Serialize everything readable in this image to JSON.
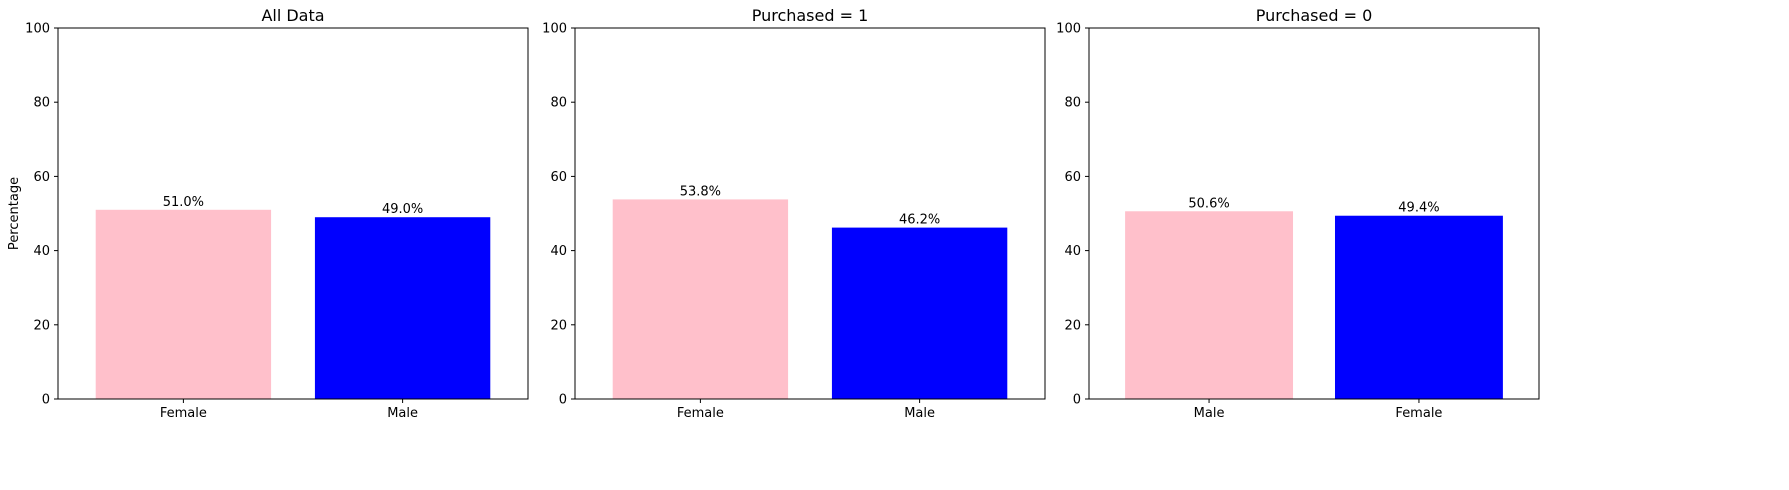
{
  "chart_data": [
    {
      "type": "bar",
      "title": "All Data",
      "ylabel": "Percentage",
      "xlabel": "",
      "ylim": [
        0,
        100
      ],
      "yticks": [
        0,
        20,
        40,
        60,
        80,
        100
      ],
      "categories": [
        "Female",
        "Male"
      ],
      "values": [
        51.0,
        49.0
      ],
      "value_labels": [
        "51.0%",
        "49.0%"
      ],
      "colors": [
        "#ffc0cb",
        "#0000ff"
      ],
      "grid": false
    },
    {
      "type": "bar",
      "title": "Purchased = 1",
      "ylabel": "",
      "xlabel": "",
      "ylim": [
        0,
        100
      ],
      "yticks": [
        0,
        20,
        40,
        60,
        80,
        100
      ],
      "categories": [
        "Female",
        "Male"
      ],
      "values": [
        53.8,
        46.2
      ],
      "value_labels": [
        "53.8%",
        "46.2%"
      ],
      "colors": [
        "#ffc0cb",
        "#0000ff"
      ],
      "grid": false
    },
    {
      "type": "bar",
      "title": "Purchased = 0",
      "ylabel": "",
      "xlabel": "",
      "ylim": [
        0,
        100
      ],
      "yticks": [
        0,
        20,
        40,
        60,
        80,
        100
      ],
      "categories": [
        "Male",
        "Female"
      ],
      "values": [
        50.6,
        49.4
      ],
      "value_labels": [
        "50.6%",
        "49.4%"
      ],
      "colors": [
        "#ffc0cb",
        "#0000ff"
      ],
      "grid": false
    }
  ]
}
